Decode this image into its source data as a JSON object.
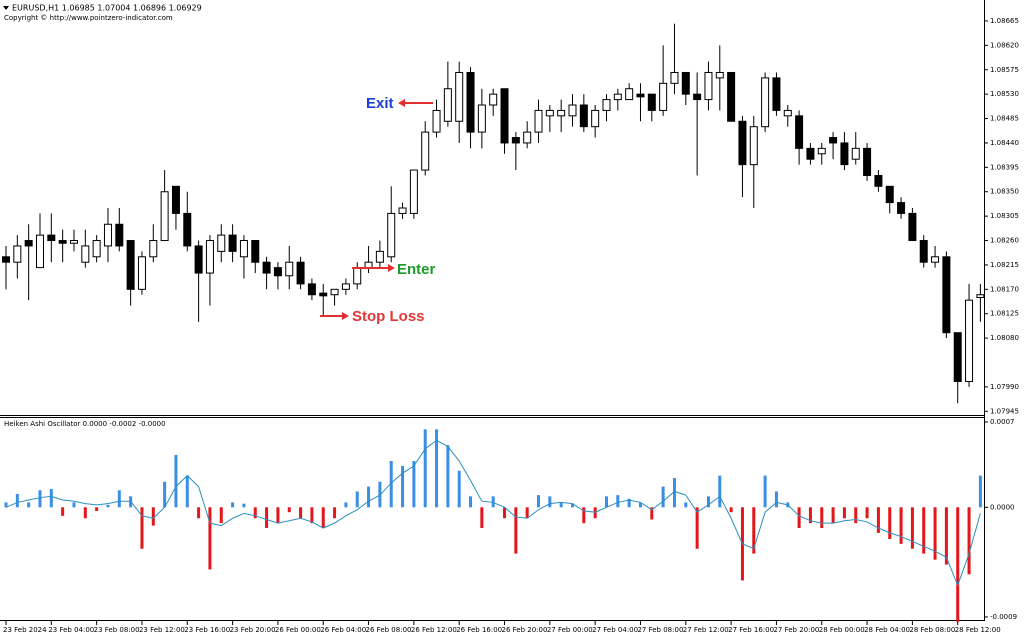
{
  "chart_data": [
    {
      "type": "candlestick",
      "title": "EURUSD,H1  1.06985 1.07004 1.06896 1.06929",
      "subtitle": "Copyright © http://www.pointzero-indicator.com",
      "categories": [
        "23 Feb 2024",
        null,
        null,
        null,
        "23 Feb 04:00",
        null,
        null,
        null,
        "23 Feb 08:00",
        null,
        null,
        null,
        "23 Feb 12:00",
        null,
        null,
        null,
        "23 Feb 16:00",
        null,
        null,
        null,
        "23 Feb 20:00",
        null,
        null,
        null,
        "26 Feb 00:00",
        null,
        null,
        null,
        "26 Feb 04:00",
        null,
        null,
        null,
        "26 Feb 08:00",
        null,
        null,
        null,
        "26 Feb 12:00",
        null,
        null,
        null,
        "26 Feb 16:00",
        null,
        null,
        null,
        "26 Feb 20:00",
        null,
        null,
        null,
        "27 Feb 00:00",
        null,
        null,
        null,
        "27 Feb 04:00",
        null,
        null,
        null,
        "27 Feb 08:00",
        null,
        null,
        null,
        "27 Feb 12:00",
        null,
        null,
        null,
        "27 Feb 16:00",
        null,
        null,
        null,
        "27 Feb 20:00",
        null,
        null,
        null,
        "28 Feb 00:00",
        null,
        null,
        null,
        "28 Feb 04:00",
        null,
        null,
        null,
        "28 Feb 08:00",
        null,
        null,
        null,
        "28 Feb 12:00",
        null,
        null
      ],
      "open": [
        1.0823,
        1.0822,
        1.0826,
        1.0821,
        1.0827,
        1.0826,
        1.08255,
        1.0822,
        1.0823,
        1.0825,
        1.0829,
        1.0826,
        1.0817,
        1.0823,
        1.0826,
        1.0836,
        1.0831,
        1.0825,
        1.082,
        1.0824,
        1.0827,
        1.0823,
        1.0826,
        1.0822,
        1.0821,
        1.08195,
        1.0822,
        1.0818,
        1.08163,
        1.0816,
        1.0817,
        1.0818,
        1.0821,
        1.0822,
        1.0823,
        1.0831,
        1.0831,
        1.0839,
        1.0846,
        1.0848,
        1.0848,
        1.0857,
        1.0846,
        1.0851,
        1.0854,
        1.0845,
        1.0844,
        1.0846,
        1.0849,
        1.0849,
        1.0849,
        1.0851,
        1.0847,
        1.085,
        1.0852,
        1.0852,
        1.0853,
        1.0853,
        1.085,
        1.0855,
        1.0857,
        1.0853,
        1.0852,
        1.0856,
        1.0857,
        1.0848,
        1.084,
        1.0847,
        1.0856,
        1.0849,
        1.0849,
        1.0843,
        1.0842,
        1.0845,
        1.0844,
        1.0841,
        1.0843,
        1.0838,
        1.0836,
        1.0833,
        1.0831,
        1.0826,
        1.0822,
        1.0823,
        1.0809,
        1.08,
        1.08155
      ],
      "high": [
        1.0825,
        1.0827,
        1.0829,
        1.0831,
        1.0831,
        1.0828,
        1.0828,
        1.0828,
        1.0827,
        1.0832,
        1.0832,
        1.0826,
        1.0824,
        1.0829,
        1.0839,
        1.0836,
        1.0835,
        1.0826,
        1.0827,
        1.0829,
        1.0829,
        1.0827,
        1.0826,
        1.0823,
        1.0822,
        1.0825,
        1.0823,
        1.0819,
        1.0818,
        1.0817,
        1.0819,
        1.0822,
        1.0825,
        1.0826,
        1.0836,
        1.0833,
        1.0839,
        1.0848,
        1.0852,
        1.0859,
        1.0859,
        1.0858,
        1.0854,
        1.0854,
        1.0854,
        1.0846,
        1.0848,
        1.0852,
        1.0851,
        1.0852,
        1.0853,
        1.0853,
        1.0851,
        1.0853,
        1.0854,
        1.0855,
        1.0855,
        1.0853,
        1.0862,
        1.0866,
        1.0857,
        1.0857,
        1.0859,
        1.0862,
        1.0857,
        1.0849,
        1.0849,
        1.0857,
        1.0857,
        1.0851,
        1.085,
        1.0844,
        1.0844,
        1.0846,
        1.0846,
        1.0846,
        1.0844,
        1.0839,
        1.0836,
        1.0834,
        1.0832,
        1.0827,
        1.0825,
        1.0824,
        1.0809,
        1.0818,
        1.0818
      ],
      "low": [
        1.0817,
        1.0819,
        1.0815,
        1.0821,
        1.0822,
        1.0822,
        1.0824,
        1.0821,
        1.0822,
        1.0822,
        1.0824,
        1.0814,
        1.0816,
        1.0822,
        1.0826,
        1.0828,
        1.0824,
        1.0811,
        1.0814,
        1.0822,
        1.0822,
        1.0819,
        1.082,
        1.0817,
        1.0817,
        1.0817,
        1.0817,
        1.0815,
        1.0812,
        1.0814,
        1.0816,
        1.0817,
        1.082,
        1.0821,
        1.0822,
        1.083,
        1.083,
        1.0838,
        1.0845,
        1.0847,
        1.0844,
        1.0843,
        1.0843,
        1.0849,
        1.0842,
        1.0839,
        1.0843,
        1.0844,
        1.0846,
        1.0846,
        1.0847,
        1.0846,
        1.0845,
        1.0848,
        1.085,
        1.0852,
        1.0848,
        1.0848,
        1.0849,
        1.0853,
        1.0851,
        1.0838,
        1.085,
        1.085,
        1.0848,
        1.0834,
        1.0832,
        1.0846,
        1.0849,
        1.0847,
        1.084,
        1.084,
        1.084,
        1.0841,
        1.0839,
        1.084,
        1.0837,
        1.0835,
        1.0831,
        1.083,
        1.0826,
        1.0821,
        1.0821,
        1.0808,
        1.0796,
        1.0799,
        1.0811
      ],
      "close": [
        1.0822,
        1.0825,
        1.0825,
        1.0827,
        1.0826,
        1.08255,
        1.0826,
        1.0825,
        1.0826,
        1.0829,
        1.0825,
        1.0817,
        1.0823,
        1.0826,
        1.0835,
        1.0831,
        1.0825,
        1.082,
        1.0826,
        1.0827,
        1.0824,
        1.0826,
        1.0822,
        1.082,
        1.08195,
        1.0822,
        1.0818,
        1.0816,
        1.08158,
        1.0817,
        1.0818,
        1.0821,
        1.0822,
        1.0824,
        1.0831,
        1.0832,
        1.0839,
        1.0846,
        1.085,
        1.0854,
        1.0857,
        1.0846,
        1.0851,
        1.0853,
        1.0844,
        1.0844,
        1.0846,
        1.085,
        1.085,
        1.085,
        1.0851,
        1.0847,
        1.085,
        1.0852,
        1.0853,
        1.0854,
        1.08525,
        1.085,
        1.0855,
        1.0857,
        1.0853,
        1.0852,
        1.0857,
        1.0857,
        1.0848,
        1.084,
        1.0847,
        1.0856,
        1.085,
        1.085,
        1.0843,
        1.0841,
        1.0843,
        1.0844,
        1.084,
        1.0843,
        1.0838,
        1.0836,
        1.0833,
        1.0831,
        1.0826,
        1.0822,
        1.0823,
        1.0809,
        1.08,
        1.0815,
        1.0816
      ],
      "up_color": "#ffffff",
      "down_color": "#000000",
      "outline_color": "#000000",
      "ylim": [
        1.0794,
        1.087
      ],
      "yticks": [
        1.08665,
        {
          "value": 1.0862,
          "label": "1.08620"
        },
        1.08575,
        {
          "value": 1.0853,
          "label": "1.08530"
        },
        1.08485,
        {
          "value": 1.0844,
          "label": "1.08440"
        },
        1.08395,
        {
          "value": 1.0835,
          "label": "1.08350"
        },
        1.08305,
        {
          "value": 1.0826,
          "label": "1.08260"
        },
        1.08215,
        {
          "value": 1.0817,
          "label": "1.08170"
        },
        1.08125,
        {
          "value": 1.0808,
          "label": "1.08080"
        },
        {
          "value": 1.0799,
          "label": "1.07990"
        },
        1.07945
      ],
      "annotations": [
        "Exit",
        "Enter",
        "Stop Loss"
      ]
    },
    {
      "type": "oscillator",
      "title": "Heiken Ashi Oscillator 0.0000 -0.0002 -0.0000",
      "values": [
        4e-05,
        0.00011,
        4e-05,
        0.00014,
        0.00015,
        -7e-05,
        4e-05,
        -9e-05,
        -3e-05,
        2e-05,
        0.00014,
        9e-05,
        -0.00034,
        -0.00015,
        0.00021,
        0.00043,
        0.00026,
        -9e-05,
        -0.00051,
        -0.00013,
        4e-05,
        3e-05,
        -9e-05,
        -0.00017,
        -0.00013,
        -4e-05,
        -9e-05,
        -0.00013,
        -0.00017,
        -9e-05,
        4e-05,
        0.00013,
        0.00017,
        0.00021,
        0.00038,
        0.00034,
        0.00038,
        0.00064,
        0.00064,
        0.00051,
        0.0003,
        9e-05,
        -0.00017,
        9e-05,
        -9e-05,
        -0.00038,
        -9e-05,
        0.0001,
        9e-05,
        4e-05,
        3e-05,
        -0.00013,
        -9e-05,
        9e-05,
        0.0001,
        7e-05,
        4e-05,
        -0.0001,
        0.00017,
        0.00024,
        4e-05,
        -0.00034,
        9e-05,
        0.00026,
        -4e-05,
        -0.0006,
        -0.00038,
        0.00026,
        0.00013,
        4e-05,
        -0.00017,
        -0.00013,
        -0.00017,
        -0.00013,
        -9e-05,
        -0.00013,
        -9e-05,
        -0.00021,
        -0.00026,
        -0.0003,
        -0.00034,
        -0.00038,
        -0.00043,
        -0.00047,
        -0.00094,
        -0.00055,
        0.00026
      ],
      "signal": [
        0,
        4e-05,
        6e-05,
        8e-05,
        9e-05,
        6e-05,
        5e-05,
        3e-05,
        2e-05,
        3e-05,
        5e-05,
        5e-05,
        -7e-05,
        -9e-05,
        0,
        0.00017,
        0.00026,
        0.00017,
        -0.00013,
        -0.00015,
        -9e-05,
        -5e-05,
        -7e-05,
        -0.0001,
        -0.00013,
        -0.00011,
        -9e-05,
        -0.00012,
        -0.00017,
        -0.00013,
        -7e-05,
        -2e-05,
        5e-05,
        0.0001,
        0.0002,
        0.00028,
        0.00034,
        0.00048,
        0.00055,
        0.0005,
        0.00038,
        0.00022,
        5e-05,
        4e-05,
        0,
        -8e-05,
        -9e-05,
        -2e-05,
        3e-05,
        4e-05,
        3e-05,
        -3e-05,
        -4e-05,
        0,
        4e-05,
        6e-05,
        4e-05,
        -2e-05,
        5e-05,
        0.00013,
        0.0001,
        -4e-05,
        2e-05,
        9e-05,
        -9e-05,
        -0.0003,
        -0.00034,
        -4e-05,
        4e-05,
        2e-05,
        -7e-05,
        -0.00011,
        -0.00013,
        -0.00013,
        -0.00011,
        -0.0001,
        -0.00012,
        -0.00017,
        -0.00021,
        -0.00024,
        -0.00028,
        -0.00032,
        -0.00036,
        -0.00041,
        -0.00064,
        -0.00038,
        -5e-05
      ],
      "positive_color": "#3a8ee6",
      "negative_color": "#e3161b",
      "signal_color": "#2b8fc0",
      "ylim": [
        -0.000925,
        0.000733
      ],
      "yticks": [
        0.0007,
        {
          "value": 0,
          "label": "0.0000"
        },
        -0.0009
      ]
    }
  ]
}
